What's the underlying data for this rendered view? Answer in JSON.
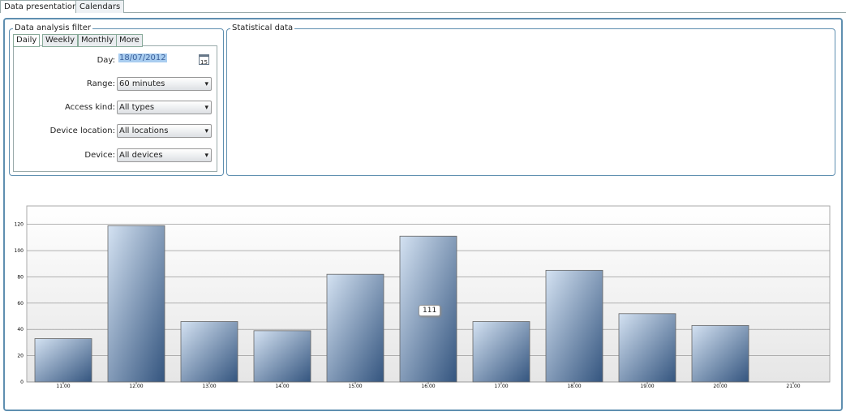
{
  "tabs": [
    "Data presentation",
    "Calendars"
  ],
  "filter": {
    "title": "Data analysis filter",
    "tabs": [
      "Daily",
      "Weekly",
      "Monthly",
      "More"
    ],
    "fields": [
      {
        "label": "Day:",
        "value": "18/07/2012"
      },
      {
        "label": "Range:",
        "value": "60 minutes"
      },
      {
        "label": "Access kind:",
        "value": "All types"
      },
      {
        "label": "Device location:",
        "value": "All locations"
      },
      {
        "label": "Device:",
        "value": "All devices"
      }
    ],
    "calendar_icon": "15"
  },
  "statistics": {
    "title": "Statistical data"
  },
  "chart_data": {
    "type": "bar",
    "categories": [
      "11.00",
      "12.00",
      "13.00",
      "14.00",
      "15.00",
      "16.00",
      "17.00",
      "18.00",
      "19.00",
      "20.00",
      "21.00"
    ],
    "values": [
      33,
      119,
      46,
      39,
      82,
      111,
      46,
      85,
      52,
      43,
      0
    ],
    "color": "#34557f",
    "ylim": [
      0,
      134
    ],
    "yticks": [
      0,
      20,
      40,
      60,
      80,
      100,
      120
    ],
    "grid": true
  }
}
